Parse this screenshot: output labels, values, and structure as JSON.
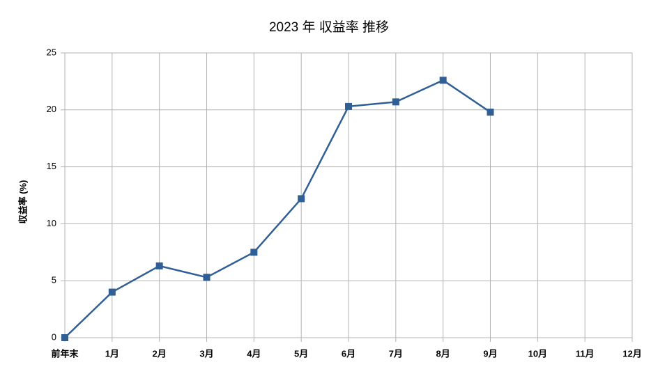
{
  "chart_data": {
    "type": "line",
    "title": "2023 年 収益率 推移",
    "y_label": "収益率 (%)",
    "categories": [
      "前年末",
      "1月",
      "2月",
      "3月",
      "4月",
      "5月",
      "6月",
      "7月",
      "8月",
      "9月",
      "10月",
      "11月",
      "12月"
    ],
    "values": [
      0,
      4.0,
      6.3,
      5.3,
      7.5,
      12.2,
      20.3,
      20.7,
      22.6,
      19.8,
      null,
      null,
      null
    ],
    "color": "#305f96",
    "ylim": [
      0,
      25
    ],
    "yticks": [
      0,
      5,
      10,
      15,
      20,
      25
    ],
    "grid": true
  }
}
